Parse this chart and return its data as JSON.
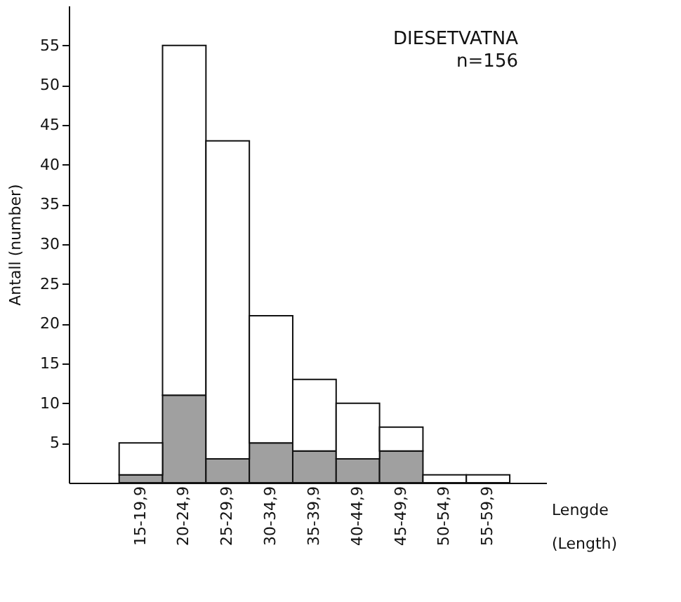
{
  "chart_data": {
    "type": "bar",
    "stacked": true,
    "ylabel": "Antall (number)",
    "xlabel": "Lengde (Length)",
    "annotations": [
      "DIESETVATNA",
      "n=156"
    ],
    "categories": [
      "15-19,9",
      "20-24,9",
      "25-29,9",
      "30-34,9",
      "35-39,9",
      "40-44,9",
      "45-49,9",
      "50-54,9",
      "55-59,9"
    ],
    "series": [
      {
        "color": "#a0a0a0",
        "values": [
          1,
          11,
          3,
          5,
          4,
          3,
          4,
          0,
          0
        ]
      },
      {
        "color": "#ffffff",
        "values": [
          4,
          44,
          40,
          16,
          9,
          7,
          3,
          1,
          1
        ]
      }
    ],
    "ylim": [
      0,
      60
    ],
    "yticks": [
      5,
      10,
      15,
      20,
      25,
      30,
      35,
      40,
      45,
      50,
      55
    ],
    "grid": false
  }
}
